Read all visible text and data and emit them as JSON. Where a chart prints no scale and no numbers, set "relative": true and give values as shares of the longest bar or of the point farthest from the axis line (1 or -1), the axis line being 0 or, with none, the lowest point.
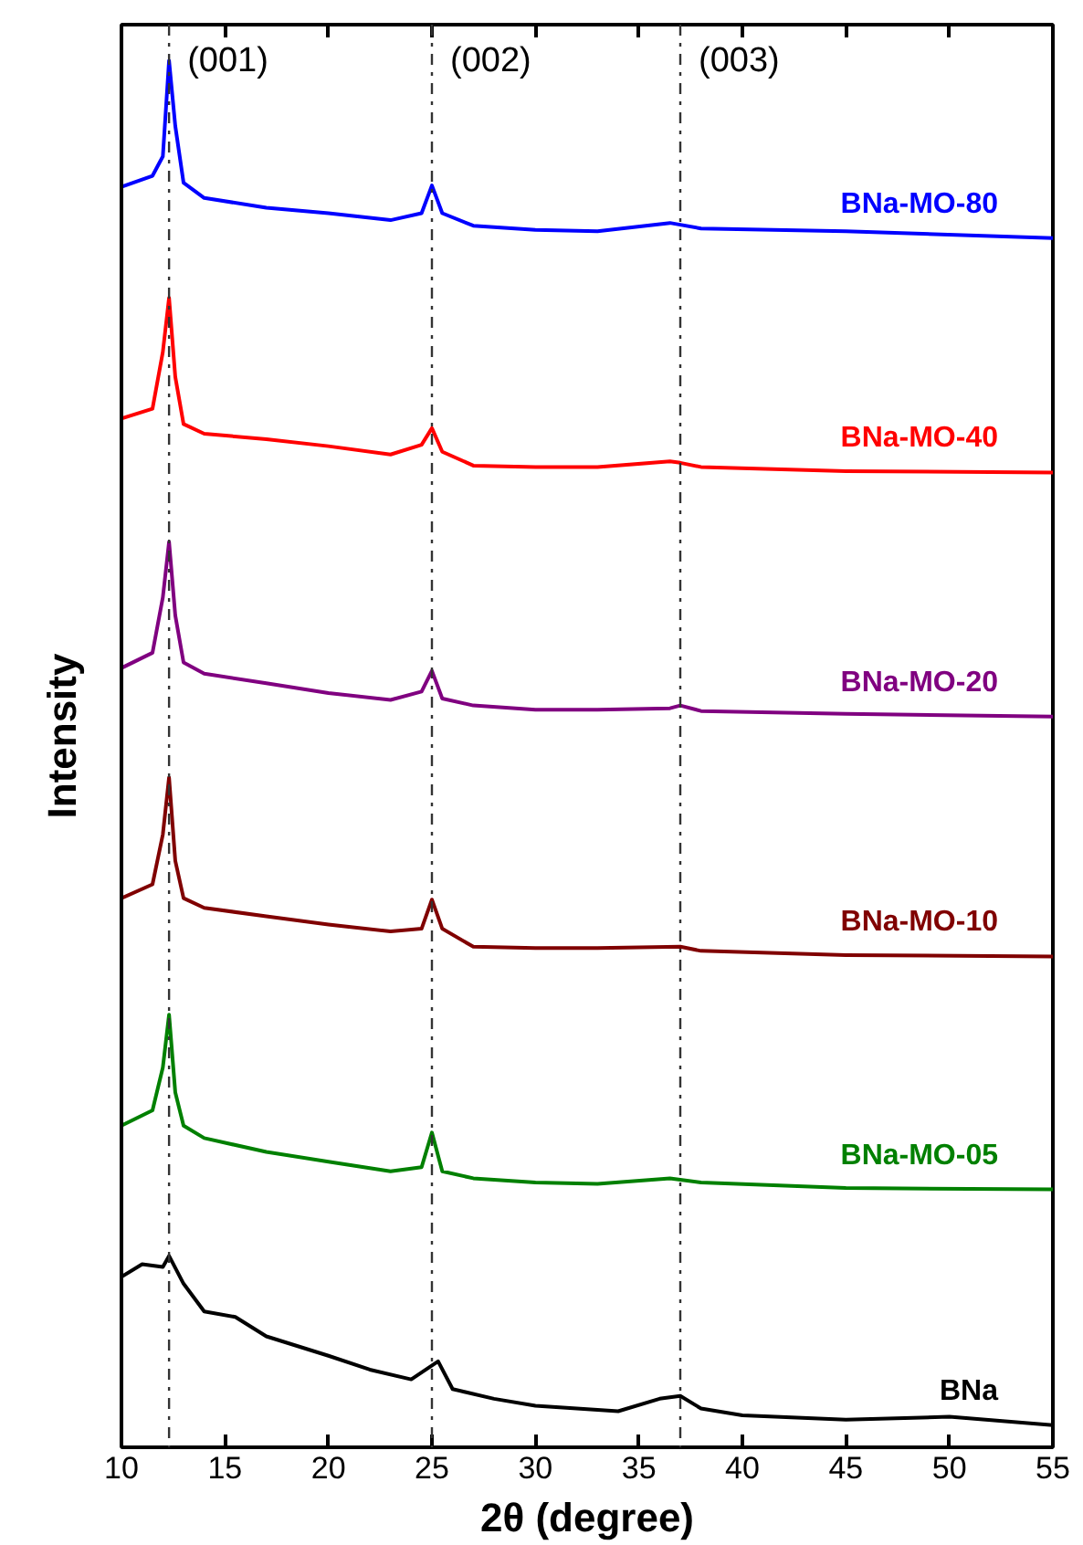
{
  "chart_data": {
    "type": "line",
    "relative": true,
    "xlabel": "2θ (degree)",
    "ylabel": "Intensity",
    "xlim": [
      10,
      55
    ],
    "xticks": [
      10,
      15,
      20,
      25,
      30,
      35,
      40,
      45,
      50,
      55
    ],
    "grid": false,
    "annotations": [
      "(001)",
      "(002)",
      "(003)"
    ],
    "line_style": "solid",
    "marker": "none",
    "tick_labels": "x",
    "series": [
      {
        "name": "BNa-MO-80",
        "color": "#0000ff",
        "x": [
          10,
          11.5,
          12,
          12.3,
          12.6,
          13,
          14,
          17,
          20,
          23,
          24.5,
          25,
          25.5,
          27,
          30,
          33,
          36.5,
          38,
          45,
          55
        ],
        "values": [
          0.909,
          0.917,
          0.931,
          1.0,
          0.953,
          0.912,
          0.901,
          0.894,
          0.89,
          0.885,
          0.89,
          0.91,
          0.89,
          0.881,
          0.878,
          0.877,
          0.883,
          0.879,
          0.877,
          0.872
        ]
      },
      {
        "name": "BNa-MO-40",
        "color": "#ff0000",
        "x": [
          10,
          11.5,
          12,
          12.3,
          12.6,
          13,
          14,
          17,
          20,
          23,
          24.5,
          25,
          25.5,
          27,
          30,
          33,
          36.5,
          37,
          38,
          45,
          55
        ],
        "values": [
          0.742,
          0.749,
          0.79,
          0.829,
          0.772,
          0.738,
          0.731,
          0.727,
          0.722,
          0.716,
          0.723,
          0.735,
          0.718,
          0.708,
          0.707,
          0.707,
          0.711,
          0.71,
          0.707,
          0.704,
          0.703
        ]
      },
      {
        "name": "BNa-MO-20",
        "color": "#800080",
        "x": [
          10,
          11.5,
          12,
          12.3,
          12.6,
          13,
          14,
          17,
          20,
          23,
          24.5,
          25,
          25.5,
          27,
          30,
          33,
          36.5,
          37,
          38,
          45,
          55
        ],
        "values": [
          0.562,
          0.573,
          0.613,
          0.653,
          0.6,
          0.566,
          0.558,
          0.551,
          0.544,
          0.539,
          0.545,
          0.56,
          0.54,
          0.535,
          0.532,
          0.532,
          0.533,
          0.535,
          0.531,
          0.529,
          0.527
        ]
      },
      {
        "name": "BNa-MO-10",
        "color": "#800000",
        "x": [
          10,
          11.5,
          12,
          12.3,
          12.6,
          13,
          14,
          17,
          20,
          23,
          24.5,
          25,
          25.5,
          27,
          30,
          33,
          37,
          38,
          45,
          55
        ],
        "values": [
          0.396,
          0.406,
          0.442,
          0.483,
          0.423,
          0.396,
          0.389,
          0.383,
          0.377,
          0.372,
          0.374,
          0.395,
          0.374,
          0.361,
          0.36,
          0.36,
          0.361,
          0.358,
          0.355,
          0.354
        ]
      },
      {
        "name": "BNa-MO-05",
        "color": "#008000",
        "x": [
          10,
          11.5,
          12,
          12.3,
          12.6,
          13,
          14,
          17,
          20,
          23,
          24.5,
          25,
          25.5,
          27,
          30,
          33,
          36.5,
          38,
          45,
          55
        ],
        "values": [
          0.232,
          0.243,
          0.274,
          0.312,
          0.256,
          0.232,
          0.223,
          0.213,
          0.206,
          0.199,
          0.202,
          0.227,
          0.199,
          0.194,
          0.191,
          0.19,
          0.194,
          0.191,
          0.187,
          0.186
        ]
      },
      {
        "name": "BNa",
        "color": "#000000",
        "x": [
          10,
          11,
          12,
          12.3,
          13,
          14,
          15.5,
          17,
          20,
          22,
          24,
          25.3,
          26,
          28,
          30,
          34,
          36,
          37,
          38,
          40,
          45,
          50,
          55
        ],
        "values": [
          0.123,
          0.132,
          0.13,
          0.138,
          0.118,
          0.098,
          0.094,
          0.08,
          0.066,
          0.056,
          0.049,
          0.062,
          0.042,
          0.035,
          0.03,
          0.026,
          0.035,
          0.037,
          0.028,
          0.023,
          0.02,
          0.022,
          0.016
        ]
      }
    ],
    "ref_lines": [
      {
        "axis": "x",
        "value": 12.3,
        "color": "#333333",
        "line_style": "dashdot"
      },
      {
        "axis": "x",
        "value": 25.0,
        "color": "#333333",
        "line_style": "dashdot"
      },
      {
        "axis": "x",
        "value": 37.0,
        "color": "#333333",
        "line_style": "dashdot"
      }
    ]
  }
}
